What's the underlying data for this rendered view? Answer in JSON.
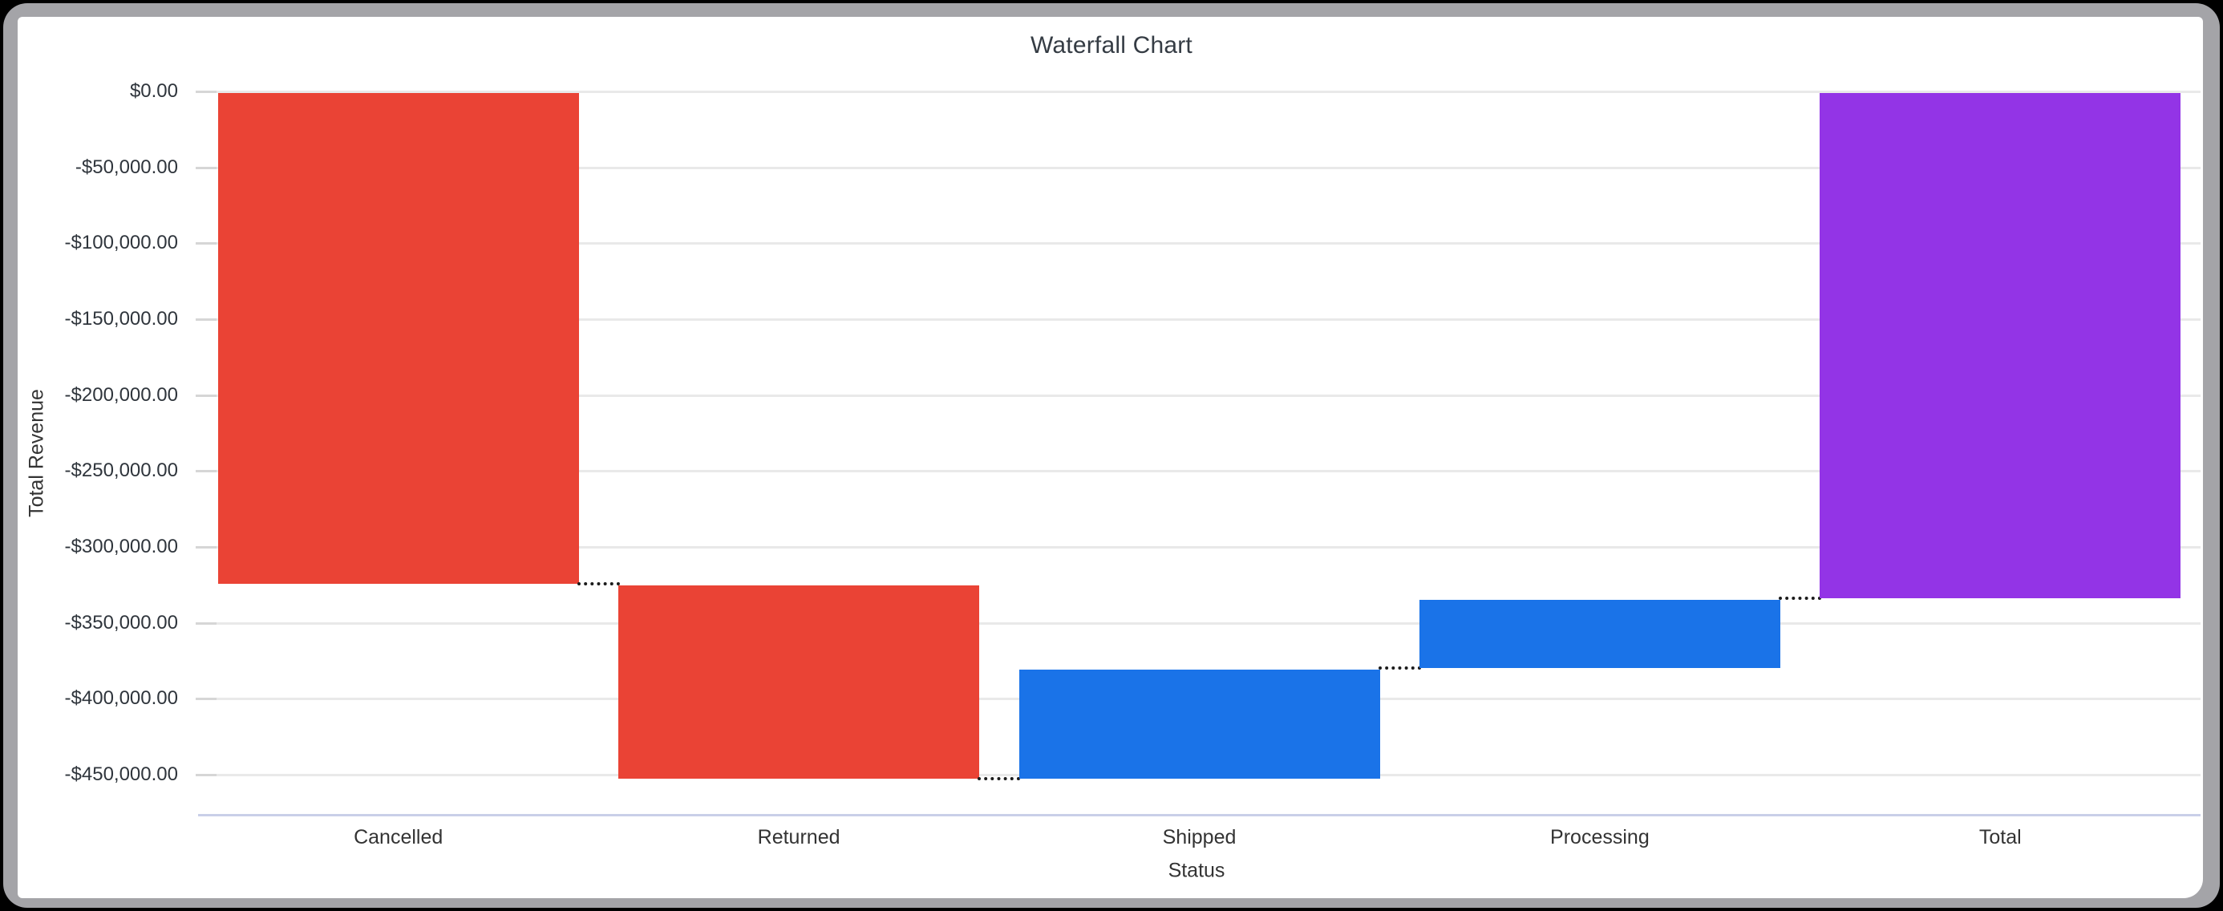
{
  "window": {
    "frame_color": "#a4a4a8",
    "canvas_color": "#ffffff",
    "outer_background": "#000000"
  },
  "chart_data": {
    "type": "waterfall",
    "title": "Waterfall Chart",
    "xlabel": "Status",
    "ylabel": "Total Revenue",
    "categories": [
      "Cancelled",
      "Returned",
      "Shipped",
      "Processing",
      "Total"
    ],
    "bars": [
      {
        "label": "Cancelled",
        "from": 0,
        "to": -324500,
        "change": -324500,
        "role": "decrease"
      },
      {
        "label": "Returned",
        "from": -324500,
        "to": -452500,
        "change": -128000,
        "role": "decrease"
      },
      {
        "label": "Shipped",
        "from": -452500,
        "to": -379500,
        "change": 73000,
        "role": "increase"
      },
      {
        "label": "Processing",
        "from": -379500,
        "to": -334000,
        "change": 45500,
        "role": "increase"
      },
      {
        "label": "Total",
        "from": 0,
        "to": -334000,
        "change": -334000,
        "role": "total"
      }
    ],
    "colors": {
      "decrease": "#EA4335",
      "increase": "#1A73E8",
      "total": "#9334E6"
    },
    "y_axis": {
      "ticks": [
        0,
        -50000,
        -100000,
        -150000,
        -200000,
        -250000,
        -300000,
        -350000,
        -400000,
        -450000
      ],
      "tick_labels": [
        "$0.00",
        "-$50,000.00",
        "-$100,000.00",
        "-$150,000.00",
        "-$200,000.00",
        "-$250,000.00",
        "-$300,000.00",
        "-$350,000.00",
        "-$400,000.00",
        "-$450,000.00"
      ],
      "max": 0,
      "min": -476500,
      "grid": true
    },
    "legend": "none",
    "connector_style": "dotted"
  }
}
